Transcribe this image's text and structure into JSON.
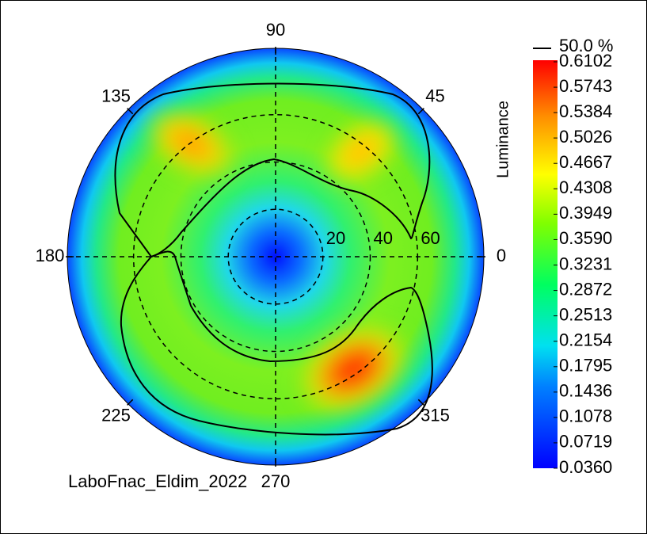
{
  "chart_data": {
    "type": "polar-heatmap",
    "angle_ticks": [
      0,
      45,
      90,
      135,
      180,
      225,
      270,
      315
    ],
    "rlim": [
      0,
      88
    ],
    "rticks": [
      20,
      40,
      60
    ],
    "colorbar_label": "Luminance",
    "clim": [
      0.036,
      0.6102
    ],
    "colorbar_ticks": [
      0.6102,
      0.5743,
      0.5384,
      0.5026,
      0.4667,
      0.4308,
      0.3949,
      {
        "value": 0.359,
        "label": "0.3590"
      },
      0.3231,
      0.2872,
      0.2513,
      0.2154,
      0.1795,
      0.1436,
      0.1078,
      0.0719,
      {
        "value": 0.036,
        "label": "0.0360"
      }
    ],
    "contour": {
      "value": 50,
      "label": "50.0 %"
    },
    "footer": "LaboFnac_Eldim_2022"
  }
}
